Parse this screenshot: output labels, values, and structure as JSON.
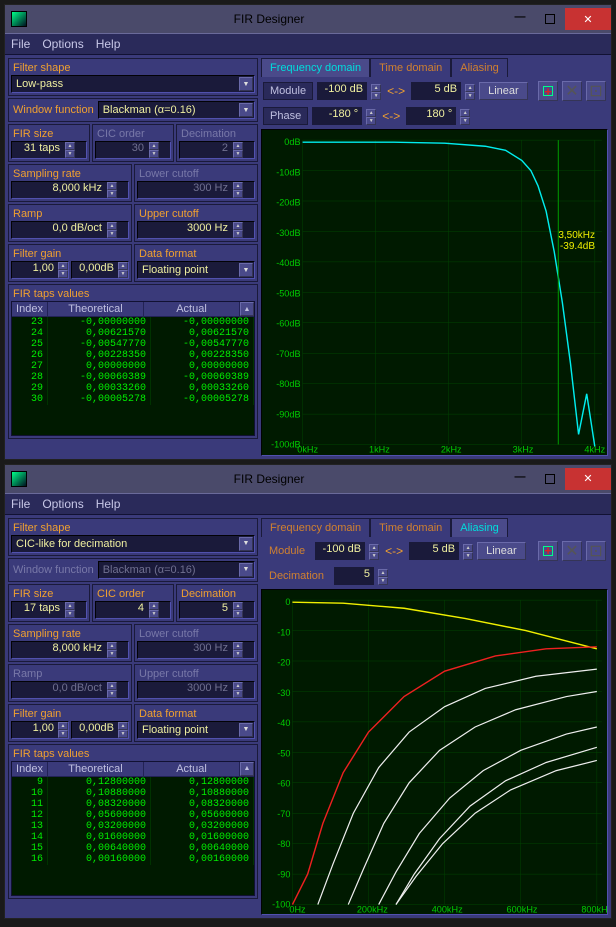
{
  "win1": {
    "title": "FIR Designer",
    "menu": {
      "file": "File",
      "options": "Options",
      "help": "Help"
    },
    "fields": {
      "filter_shape_label": "Filter shape",
      "filter_shape": "Low-pass",
      "window_fn_label": "Window function",
      "window_fn": "Blackman (α=0.16)",
      "fir_size_label": "FIR size",
      "fir_size": "31 taps",
      "cic_order_label": "CIC order",
      "cic_order": "30",
      "decim_label": "Decimation",
      "decim": "2",
      "samp_label": "Sampling rate",
      "samp": "8,000 kHz",
      "lcut_label": "Lower cutoff",
      "lcut": "300 Hz",
      "ramp_label": "Ramp",
      "ramp": "0,0 dB/oct",
      "ucut_label": "Upper cutoff",
      "ucut": "3000 Hz",
      "gain_label": "Filter gain",
      "gain1": "1,00",
      "gain2": "0,00dB",
      "dfmt_label": "Data format",
      "dfmt": "Floating point",
      "taps_label": "FIR taps values",
      "col_idx": "Index",
      "col_theo": "Theoretical",
      "col_act": "Actual"
    },
    "taps": [
      {
        "i": "23",
        "t": "-0,00000000",
        "a": "-0,00000000"
      },
      {
        "i": "24",
        "t": "0,00621570",
        "a": "0,00621570"
      },
      {
        "i": "25",
        "t": "-0,00547770",
        "a": "-0,00547770"
      },
      {
        "i": "26",
        "t": "0,00228350",
        "a": "0,00228350"
      },
      {
        "i": "27",
        "t": "0,00000000",
        "a": "0,00000000"
      },
      {
        "i": "28",
        "t": "-0,00060389",
        "a": "-0,00060389"
      },
      {
        "i": "29",
        "t": "0,00033260",
        "a": "0,00033260"
      },
      {
        "i": "30",
        "t": "-0,00005278",
        "a": "-0,00005278"
      }
    ],
    "graph": {
      "tabs": {
        "freq": "Frequency domain",
        "time": "Time domain",
        "alias": "Aliasing",
        "active": "freq"
      },
      "module_label": "Module",
      "module_lo": "-100 dB",
      "module_hi": "5 dB",
      "linear": "Linear",
      "phase_label": "Phase",
      "phase_lo": "-180 °",
      "phase_hi": "180 °",
      "cursor_freq": "3,50kHz",
      "cursor_db": "-39.4dB",
      "x_ticks": [
        "0kHz",
        "1kHz",
        "2kHz",
        "3kHz",
        "4kHz"
      ],
      "y_ticks": [
        "0dB",
        "-10dB",
        "-20dB",
        "-30dB",
        "-40dB",
        "-50dB",
        "-60dB",
        "-70dB",
        "-80dB",
        "-90dB",
        "-100dB"
      ],
      "colors": {
        "bg": "#001a00",
        "grid": "#005500",
        "curve": "#00eeee",
        "axis_text": "#00cc00",
        "cursor": "#f0f000"
      }
    }
  },
  "win2": {
    "title": "FIR Designer",
    "menu": {
      "file": "File",
      "options": "Options",
      "help": "Help"
    },
    "fields": {
      "filter_shape_label": "Filter shape",
      "filter_shape": "CIC-like for decimation",
      "window_fn_label": "Window function",
      "window_fn": "Blackman (α=0.16)",
      "fir_size_label": "FIR size",
      "fir_size": "17 taps",
      "cic_order_label": "CIC order",
      "cic_order": "4",
      "decim_label": "Decimation",
      "decim": "5",
      "samp_label": "Sampling rate",
      "samp": "8,000 kHz",
      "lcut_label": "Lower cutoff",
      "lcut": "300 Hz",
      "ramp_label": "Ramp",
      "ramp": "0,0 dB/oct",
      "ucut_label": "Upper cutoff",
      "ucut": "3000 Hz",
      "gain_label": "Filter gain",
      "gain1": "1,00",
      "gain2": "0,00dB",
      "dfmt_label": "Data format",
      "dfmt": "Floating point",
      "taps_label": "FIR taps values",
      "col_idx": "Index",
      "col_theo": "Theoretical",
      "col_act": "Actual"
    },
    "taps": [
      {
        "i": "9",
        "t": "0,12800000",
        "a": "0,12800000"
      },
      {
        "i": "10",
        "t": "0,10880000",
        "a": "0,10880000"
      },
      {
        "i": "11",
        "t": "0,08320000",
        "a": "0,08320000"
      },
      {
        "i": "12",
        "t": "0,05600000",
        "a": "0,05600000"
      },
      {
        "i": "13",
        "t": "0,03200000",
        "a": "0,03200000"
      },
      {
        "i": "14",
        "t": "0,01600000",
        "a": "0,01600000"
      },
      {
        "i": "15",
        "t": "0,00640000",
        "a": "0,00640000"
      },
      {
        "i": "16",
        "t": "0,00160000",
        "a": "0,00160000"
      }
    ],
    "graph": {
      "tabs": {
        "freq": "Frequency domain",
        "time": "Time domain",
        "alias": "Aliasing",
        "active": "alias"
      },
      "module_label": "Module",
      "module_lo": "-100 dB",
      "module_hi": "5 dB",
      "linear": "Linear",
      "decim_label": "Decimation",
      "decim_val": "5",
      "x_ticks": [
        "0Hz",
        "200kHz",
        "400kHz",
        "600kHz",
        "800kHz"
      ],
      "y_ticks": [
        "0",
        "-10",
        "-20",
        "-30",
        "-40",
        "-50",
        "-60",
        "-70",
        "-80",
        "-90",
        "-100"
      ],
      "colors": {
        "bg": "#001a00",
        "grid": "#005500",
        "line_yellow": "#f0f000",
        "line_red": "#ee2020",
        "line_white": "#eeeeee",
        "axis_text": "#00cc00"
      }
    }
  }
}
